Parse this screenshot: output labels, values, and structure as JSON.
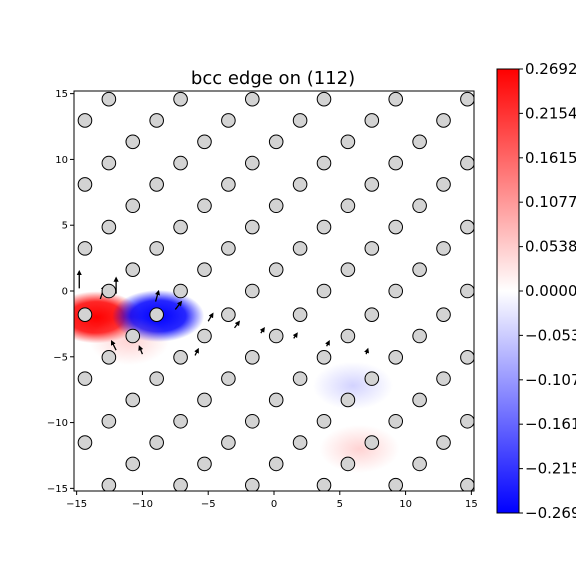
{
  "chart_data": {
    "type": "heatmap",
    "title": "bcc edge on (112)",
    "xlabel": "",
    "ylabel": "",
    "xlim": [
      -15.2,
      15.2
    ],
    "ylim": [
      -15.2,
      15.2
    ],
    "xticks": [
      -15,
      -10,
      -5,
      0,
      5,
      10,
      15
    ],
    "yticks": [
      -15,
      -10,
      -5,
      0,
      5,
      10,
      15
    ],
    "xtick_labels": [
      "−15",
      "−10",
      "−5",
      "0",
      "5",
      "10",
      "15"
    ],
    "ytick_labels": [
      "−15",
      "−10",
      "−5",
      "0",
      "5",
      "10",
      "15"
    ],
    "grid": false,
    "colormap": "bwr",
    "colorbar": {
      "min": -0.2692,
      "max": 0.2692,
      "ticks": [
        0.2692,
        0.2154,
        0.1615,
        0.1077,
        0.0538,
        0.0,
        -0.0538,
        -0.1077,
        -0.1615,
        -0.2154,
        -0.2692
      ],
      "tick_labels": [
        "0.2692",
        "0.2154",
        "0.1615",
        "0.1077",
        "0.0538",
        "0.0000",
        "−0.0538",
        "−0.1077",
        "−0.1615",
        "−0.2154",
        "−0.2692"
      ]
    },
    "field_blobs": [
      {
        "x": -13.5,
        "y": -2.0,
        "value": 0.2692
      },
      {
        "x": -8.8,
        "y": -1.9,
        "value": -0.2692
      },
      {
        "x": -11.0,
        "y": -3.8,
        "value": 0.05
      },
      {
        "x": 6.0,
        "y": -7.2,
        "value": -0.05
      },
      {
        "x": 6.5,
        "y": -12.0,
        "value": 0.03
      }
    ],
    "atoms": {
      "marker": "circle",
      "facecolor": "#d3d3d3",
      "edgecolor": "#000000",
      "row_spacing_y": 1.62,
      "x_period": 5.45,
      "rows_above_y_start": 0.0,
      "rows_below_y_start": -1.8,
      "core": {
        "x": -10.5,
        "y": -1.0
      },
      "pattern": [
        "atoms follow a bcc (112) stacking: each row shifts by one third of the period; dislocation core on the left at y≈0"
      ]
    },
    "displacement_arrows": {
      "color": "#000000",
      "description": "short black quiver arrows near atom rows, largest around the dislocation core"
    }
  }
}
